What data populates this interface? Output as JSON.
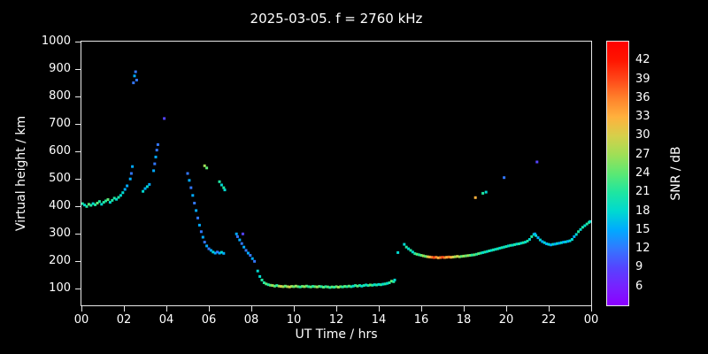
{
  "title": "2025-03-05. f = 2760 kHz",
  "colors": {
    "background": "#000000",
    "foreground": "#ffffff"
  },
  "chart_data": {
    "type": "scatter",
    "title": "2025-03-05. f = 2760 kHz",
    "xlabel": "UT Time / hrs",
    "ylabel": "Virtual height / km",
    "x_axis": {
      "min": 0,
      "max": 24,
      "tick_values": [
        0,
        2,
        4,
        6,
        8,
        10,
        12,
        14,
        16,
        18,
        20,
        22,
        24
      ],
      "tick_labels": [
        "00",
        "02",
        "04",
        "06",
        "08",
        "10",
        "12",
        "14",
        "16",
        "18",
        "20",
        "22",
        "00"
      ]
    },
    "y_axis": {
      "min": 40,
      "max": 1000,
      "tick_values": [
        100,
        200,
        300,
        400,
        500,
        600,
        700,
        800,
        900,
        1000
      ]
    },
    "colorbar": {
      "label": "SNR / dB",
      "min": 3,
      "max": 45,
      "tick_values": [
        6,
        9,
        12,
        15,
        18,
        21,
        24,
        27,
        30,
        33,
        36,
        39,
        42
      ],
      "gradient_stops": [
        [
          3,
          "#8b00ff"
        ],
        [
          6,
          "#7722ff"
        ],
        [
          9,
          "#5544ff"
        ],
        [
          12,
          "#3377ff"
        ],
        [
          15,
          "#00aaff"
        ],
        [
          18,
          "#00d9d0"
        ],
        [
          21,
          "#1fe6a0"
        ],
        [
          24,
          "#5ce873"
        ],
        [
          27,
          "#9fdf56"
        ],
        [
          30,
          "#d6cf4a"
        ],
        [
          33,
          "#ffb13d"
        ],
        [
          36,
          "#ff812b"
        ],
        [
          39,
          "#ff4718"
        ],
        [
          42,
          "#ff1500"
        ],
        [
          45,
          "#ff0000"
        ]
      ],
      "palette": {
        "6": "#7722ff",
        "9": "#5544ff",
        "12": "#3377ff",
        "15": "#00aaff",
        "18": "#00d9d0",
        "21": "#1fe6a0",
        "24": "#5ce873",
        "27": "#9fdf56",
        "30": "#d6cf4a",
        "33": "#ffb13d",
        "36": "#ff812b",
        "39": "#ff4718",
        "42": "#ff1500"
      }
    },
    "points": [
      [
        0.05,
        410,
        21
      ],
      [
        0.15,
        405,
        18
      ],
      [
        0.25,
        400,
        21
      ],
      [
        0.35,
        408,
        24
      ],
      [
        0.45,
        404,
        21
      ],
      [
        0.55,
        410,
        18
      ],
      [
        0.65,
        406,
        21
      ],
      [
        0.75,
        412,
        24
      ],
      [
        0.85,
        418,
        21
      ],
      [
        0.95,
        408,
        18
      ],
      [
        1.05,
        415,
        21
      ],
      [
        1.15,
        420,
        21
      ],
      [
        1.25,
        425,
        24
      ],
      [
        1.35,
        415,
        18
      ],
      [
        1.45,
        422,
        21
      ],
      [
        1.55,
        430,
        21
      ],
      [
        1.65,
        426,
        18
      ],
      [
        1.75,
        433,
        21
      ],
      [
        1.85,
        440,
        18
      ],
      [
        1.95,
        450,
        18
      ],
      [
        2.05,
        462,
        15
      ],
      [
        2.15,
        475,
        15
      ],
      [
        2.3,
        500,
        15
      ],
      [
        2.35,
        520,
        12
      ],
      [
        2.4,
        545,
        15
      ],
      [
        2.45,
        850,
        12
      ],
      [
        2.5,
        875,
        15
      ],
      [
        2.55,
        890,
        12
      ],
      [
        2.6,
        860,
        12
      ],
      [
        2.9,
        455,
        18
      ],
      [
        3.0,
        465,
        15
      ],
      [
        3.1,
        472,
        18
      ],
      [
        3.2,
        480,
        15
      ],
      [
        3.4,
        530,
        15
      ],
      [
        3.45,
        555,
        12
      ],
      [
        3.5,
        580,
        15
      ],
      [
        3.55,
        605,
        12
      ],
      [
        3.6,
        625,
        12
      ],
      [
        3.9,
        720,
        9
      ],
      [
        5.0,
        520,
        12
      ],
      [
        5.08,
        495,
        15
      ],
      [
        5.16,
        468,
        12
      ],
      [
        5.24,
        440,
        15
      ],
      [
        5.32,
        412,
        12
      ],
      [
        5.4,
        385,
        15
      ],
      [
        5.48,
        358,
        12
      ],
      [
        5.56,
        332,
        15
      ],
      [
        5.64,
        308,
        12
      ],
      [
        5.72,
        288,
        15
      ],
      [
        5.8,
        270,
        12
      ],
      [
        5.9,
        256,
        15
      ],
      [
        6.0,
        246,
        12
      ],
      [
        5.8,
        548,
        27
      ],
      [
        5.9,
        540,
        24
      ],
      [
        6.1,
        240,
        15
      ],
      [
        6.2,
        234,
        18
      ],
      [
        6.3,
        230,
        15
      ],
      [
        6.4,
        234,
        12
      ],
      [
        6.5,
        230,
        15
      ],
      [
        6.6,
        233,
        18
      ],
      [
        6.7,
        229,
        15
      ],
      [
        6.5,
        490,
        21
      ],
      [
        6.6,
        478,
        18
      ],
      [
        6.7,
        468,
        21
      ],
      [
        6.75,
        460,
        18
      ],
      [
        7.3,
        300,
        15
      ],
      [
        7.35,
        290,
        12
      ],
      [
        7.45,
        278,
        15
      ],
      [
        7.55,
        265,
        12
      ],
      [
        7.6,
        300,
        9
      ],
      [
        7.65,
        252,
        15
      ],
      [
        7.75,
        240,
        12
      ],
      [
        7.85,
        230,
        15
      ],
      [
        7.95,
        222,
        12
      ],
      [
        8.05,
        210,
        15
      ],
      [
        8.15,
        200,
        12
      ],
      [
        8.3,
        165,
        18
      ],
      [
        8.4,
        145,
        18
      ],
      [
        8.5,
        132,
        21
      ],
      [
        8.6,
        122,
        21
      ],
      [
        8.7,
        118,
        24
      ],
      [
        8.8,
        115,
        21
      ],
      [
        8.9,
        113,
        24
      ],
      [
        9.0,
        112,
        27
      ],
      [
        9.1,
        110,
        24
      ],
      [
        9.2,
        112,
        21
      ],
      [
        9.3,
        110,
        27
      ],
      [
        9.4,
        109,
        30
      ],
      [
        9.5,
        108,
        27
      ],
      [
        9.6,
        110,
        24
      ],
      [
        9.7,
        108,
        27
      ],
      [
        9.8,
        107,
        30
      ],
      [
        9.9,
        109,
        27
      ],
      [
        10.0,
        108,
        24
      ],
      [
        10.1,
        110,
        27
      ],
      [
        10.2,
        108,
        24
      ],
      [
        10.3,
        107,
        21
      ],
      [
        10.4,
        109,
        24
      ],
      [
        10.5,
        108,
        27
      ],
      [
        10.6,
        110,
        24
      ],
      [
        10.7,
        108,
        21
      ],
      [
        10.8,
        107,
        24
      ],
      [
        10.9,
        109,
        21
      ],
      [
        11.0,
        108,
        24
      ],
      [
        11.1,
        107,
        27
      ],
      [
        11.2,
        109,
        24
      ],
      [
        11.3,
        108,
        21
      ],
      [
        11.4,
        106,
        24
      ],
      [
        11.5,
        108,
        21
      ],
      [
        11.6,
        107,
        24
      ],
      [
        11.7,
        105,
        21
      ],
      [
        11.8,
        107,
        24
      ],
      [
        11.9,
        106,
        21
      ],
      [
        12.0,
        108,
        24
      ],
      [
        12.1,
        106,
        27
      ],
      [
        12.2,
        108,
        24
      ],
      [
        12.3,
        107,
        21
      ],
      [
        12.4,
        109,
        24
      ],
      [
        12.5,
        108,
        21
      ],
      [
        12.6,
        110,
        24
      ],
      [
        12.7,
        108,
        21
      ],
      [
        12.8,
        110,
        18
      ],
      [
        12.9,
        112,
        21
      ],
      [
        13.0,
        110,
        24
      ],
      [
        13.1,
        112,
        21
      ],
      [
        13.2,
        110,
        18
      ],
      [
        13.3,
        112,
        21
      ],
      [
        13.4,
        114,
        18
      ],
      [
        13.5,
        112,
        21
      ],
      [
        13.6,
        114,
        24
      ],
      [
        13.7,
        113,
        21
      ],
      [
        13.8,
        115,
        18
      ],
      [
        13.9,
        114,
        21
      ],
      [
        14.0,
        116,
        18
      ],
      [
        14.1,
        115,
        21
      ],
      [
        14.2,
        117,
        18
      ],
      [
        14.3,
        118,
        21
      ],
      [
        14.4,
        120,
        18
      ],
      [
        14.5,
        122,
        21
      ],
      [
        14.6,
        128,
        24
      ],
      [
        14.7,
        126,
        21
      ],
      [
        14.75,
        132,
        18
      ],
      [
        14.9,
        232,
        18
      ],
      [
        15.2,
        262,
        18
      ],
      [
        15.3,
        252,
        21
      ],
      [
        15.4,
        246,
        18
      ],
      [
        15.5,
        240,
        21
      ],
      [
        15.6,
        234,
        18
      ],
      [
        15.7,
        228,
        21
      ],
      [
        15.8,
        226,
        24
      ],
      [
        15.9,
        224,
        21
      ],
      [
        16.0,
        222,
        24
      ],
      [
        16.1,
        220,
        27
      ],
      [
        16.2,
        218,
        24
      ],
      [
        16.3,
        217,
        30
      ],
      [
        16.4,
        216,
        33
      ],
      [
        16.5,
        215,
        36
      ],
      [
        16.6,
        214,
        39
      ],
      [
        16.7,
        215,
        36
      ],
      [
        16.8,
        213,
        33
      ],
      [
        16.9,
        214,
        36
      ],
      [
        17.0,
        215,
        39
      ],
      [
        17.1,
        214,
        36
      ],
      [
        17.2,
        215,
        33
      ],
      [
        17.3,
        216,
        36
      ],
      [
        17.4,
        215,
        33
      ],
      [
        17.5,
        216,
        30
      ],
      [
        17.6,
        217,
        27
      ],
      [
        17.7,
        218,
        30
      ],
      [
        17.8,
        217,
        27
      ],
      [
        17.9,
        218,
        24
      ],
      [
        18.0,
        219,
        27
      ],
      [
        18.1,
        220,
        24
      ],
      [
        18.2,
        221,
        27
      ],
      [
        18.3,
        222,
        24
      ],
      [
        18.4,
        223,
        21
      ],
      [
        18.5,
        224,
        24
      ],
      [
        18.6,
        226,
        21
      ],
      [
        18.7,
        228,
        24
      ],
      [
        18.8,
        230,
        21
      ],
      [
        18.9,
        232,
        18
      ],
      [
        19.0,
        234,
        21
      ],
      [
        18.55,
        432,
        33
      ],
      [
        18.9,
        448,
        21
      ],
      [
        19.05,
        452,
        18
      ],
      [
        19.9,
        505,
        12
      ],
      [
        21.45,
        562,
        9
      ],
      [
        19.1,
        236,
        18
      ],
      [
        19.2,
        238,
        21
      ],
      [
        19.3,
        240,
        18
      ],
      [
        19.4,
        242,
        21
      ],
      [
        19.5,
        244,
        18
      ],
      [
        19.6,
        246,
        21
      ],
      [
        19.7,
        248,
        18
      ],
      [
        19.8,
        250,
        21
      ],
      [
        19.9,
        252,
        18
      ],
      [
        20.0,
        254,
        21
      ],
      [
        20.1,
        256,
        18
      ],
      [
        20.2,
        258,
        21
      ],
      [
        20.3,
        259,
        18
      ],
      [
        20.4,
        261,
        21
      ],
      [
        20.5,
        263,
        18
      ],
      [
        20.6,
        264,
        21
      ],
      [
        20.7,
        266,
        18
      ],
      [
        20.8,
        268,
        21
      ],
      [
        20.9,
        270,
        18
      ],
      [
        21.0,
        274,
        21
      ],
      [
        21.1,
        280,
        18
      ],
      [
        21.2,
        290,
        21
      ],
      [
        21.3,
        298,
        18
      ],
      [
        21.35,
        300,
        15
      ],
      [
        21.4,
        294,
        18
      ],
      [
        21.5,
        286,
        15
      ],
      [
        21.6,
        278,
        18
      ],
      [
        21.7,
        272,
        15
      ],
      [
        21.8,
        268,
        18
      ],
      [
        21.9,
        264,
        15
      ],
      [
        22.0,
        262,
        18
      ],
      [
        22.1,
        260,
        15
      ],
      [
        22.2,
        262,
        18
      ],
      [
        22.3,
        263,
        15
      ],
      [
        22.4,
        265,
        18
      ],
      [
        22.5,
        266,
        15
      ],
      [
        22.6,
        268,
        18
      ],
      [
        22.7,
        270,
        15
      ],
      [
        22.8,
        271,
        18
      ],
      [
        22.9,
        273,
        15
      ],
      [
        23.0,
        275,
        18
      ],
      [
        23.1,
        280,
        18
      ],
      [
        23.2,
        290,
        15
      ],
      [
        23.3,
        298,
        18
      ],
      [
        23.4,
        308,
        21
      ],
      [
        23.5,
        316,
        18
      ],
      [
        23.6,
        324,
        21
      ],
      [
        23.7,
        330,
        18
      ],
      [
        23.8,
        336,
        21
      ],
      [
        23.9,
        342,
        21
      ],
      [
        23.95,
        345,
        18
      ]
    ]
  }
}
